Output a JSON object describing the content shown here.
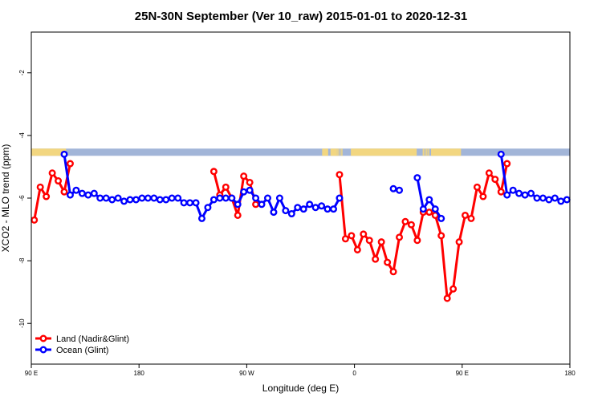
{
  "chart_data": {
    "type": "line",
    "title": "25N-30N September (Ver 10_raw)   2015-01-01 to 2020-12-31",
    "xlabel": "Longitude (deg E)",
    "ylabel": "XCO2 - MLO trend (ppm)",
    "xlim": [
      90,
      540
    ],
    "ylim": [
      -11.3,
      -0.7
    ],
    "x_ticks": [
      {
        "value": 90,
        "label": "90 E"
      },
      {
        "value": 180,
        "label": "180"
      },
      {
        "value": 270,
        "label": "90 W"
      },
      {
        "value": 360,
        "label": "0"
      },
      {
        "value": 450,
        "label": "90 E"
      },
      {
        "value": 540,
        "label": "180"
      }
    ],
    "y_ticks": [
      {
        "value": -2,
        "label": "-2"
      },
      {
        "value": -4,
        "label": "-4"
      },
      {
        "value": -6,
        "label": "-6"
      },
      {
        "value": -8,
        "label": "-8"
      },
      {
        "value": -10,
        "label": "-10"
      }
    ],
    "surface_strip": {
      "y_range": [
        -4.65,
        -4.42
      ],
      "ocean_color": "#a2b5d8",
      "land_color": "#f2d680",
      "land_intervals": [
        [
          90,
          119
        ],
        [
          333,
          338
        ],
        [
          340,
          345
        ],
        [
          345,
          346
        ],
        [
          346,
          346.8
        ],
        [
          347.6,
          348.4
        ],
        [
          349,
          350
        ],
        [
          357,
          412
        ],
        [
          417,
          418
        ],
        [
          418.5,
          419.5
        ],
        [
          420,
          421
        ],
        [
          421.5,
          422.5
        ],
        [
          424,
          449
        ]
      ]
    },
    "series": [
      {
        "name": "Land (Nadir&Glint)",
        "color": "#ff0000",
        "segments": [
          [
            [
              92.5,
              -6.7
            ],
            [
              97.5,
              -5.65
            ],
            [
              102.5,
              -5.95
            ],
            [
              107.5,
              -5.2
            ],
            [
              112.5,
              -5.45
            ],
            [
              117.5,
              -5.8
            ],
            [
              122.5,
              -4.9
            ]
          ],
          [
            [
              242.5,
              -5.15
            ],
            [
              247.5,
              -5.9
            ],
            [
              252.5,
              -5.65
            ],
            [
              257.5,
              -6.0
            ],
            [
              262.5,
              -6.55
            ],
            [
              267.5,
              -5.3
            ],
            [
              272.5,
              -5.5
            ],
            [
              277.5,
              -6.2
            ]
          ],
          [
            [
              347.5,
              -5.25
            ],
            [
              352.5,
              -7.3
            ],
            [
              357.5,
              -7.2
            ],
            [
              362.5,
              -7.65
            ],
            [
              367.5,
              -7.15
            ],
            [
              372.5,
              -7.35
            ],
            [
              377.5,
              -7.95
            ],
            [
              382.5,
              -7.4
            ],
            [
              387.5,
              -8.05
            ],
            [
              392.5,
              -8.35
            ],
            [
              397.5,
              -7.25
            ],
            [
              402.5,
              -6.75
            ],
            [
              407.5,
              -6.85
            ],
            [
              412.5,
              -7.35
            ],
            [
              417.5,
              -6.45
            ],
            [
              422.5,
              -6.45
            ],
            [
              427.5,
              -6.55
            ],
            [
              432.5,
              -7.2
            ],
            [
              437.5,
              -9.2
            ],
            [
              442.5,
              -8.9
            ],
            [
              447.5,
              -7.4
            ],
            [
              452.5,
              -6.55
            ],
            [
              457.5,
              -6.65
            ],
            [
              462.5,
              -5.65
            ],
            [
              467.5,
              -5.95
            ],
            [
              472.5,
              -5.2
            ],
            [
              477.5,
              -5.4
            ],
            [
              482.5,
              -5.8
            ],
            [
              487.5,
              -4.9
            ]
          ]
        ]
      },
      {
        "name": "Ocean (Glint)",
        "color": "#0000ff",
        "segments": [
          [
            [
              117.5,
              -4.6
            ],
            [
              122.5,
              -5.9
            ],
            [
              127.5,
              -5.75
            ],
            [
              132.5,
              -5.85
            ],
            [
              137.5,
              -5.9
            ],
            [
              142.5,
              -5.85
            ],
            [
              147.5,
              -6.0
            ],
            [
              152.5,
              -6.0
            ],
            [
              157.5,
              -6.05
            ],
            [
              162.5,
              -6.0
            ],
            [
              167.5,
              -6.1
            ],
            [
              172.5,
              -6.05
            ],
            [
              177.5,
              -6.05
            ],
            [
              182.5,
              -6.0
            ],
            [
              187.5,
              -6.0
            ],
            [
              192.5,
              -6.0
            ],
            [
              197.5,
              -6.05
            ],
            [
              202.5,
              -6.05
            ],
            [
              207.5,
              -6.0
            ],
            [
              212.5,
              -6.0
            ],
            [
              217.5,
              -6.15
            ],
            [
              222.5,
              -6.15
            ],
            [
              227.5,
              -6.15
            ],
            [
              232.5,
              -6.65
            ],
            [
              237.5,
              -6.3
            ],
            [
              242.5,
              -6.05
            ],
            [
              247.5,
              -6.0
            ],
            [
              252.5,
              -6.0
            ],
            [
              257.5,
              -6.0
            ],
            [
              262.5,
              -6.2
            ],
            [
              267.5,
              -5.8
            ],
            [
              272.5,
              -5.75
            ],
            [
              277.5,
              -6.0
            ],
            [
              282.5,
              -6.2
            ],
            [
              287.5,
              -6.0
            ],
            [
              292.5,
              -6.45
            ],
            [
              297.5,
              -6.0
            ],
            [
              302.5,
              -6.4
            ],
            [
              307.5,
              -6.5
            ],
            [
              312.5,
              -6.3
            ],
            [
              317.5,
              -6.35
            ],
            [
              322.5,
              -6.2
            ],
            [
              327.5,
              -6.3
            ],
            [
              332.5,
              -6.25
            ],
            [
              337.5,
              -6.35
            ],
            [
              342.5,
              -6.35
            ],
            [
              347.5,
              -6.0
            ]
          ],
          [
            [
              392.5,
              -5.7
            ],
            [
              397.5,
              -5.75
            ]
          ],
          [
            [
              412.5,
              -5.35
            ],
            [
              417.5,
              -6.35
            ],
            [
              422.5,
              -6.05
            ],
            [
              427.5,
              -6.35
            ],
            [
              432.5,
              -6.65
            ]
          ],
          [
            [
              482.5,
              -4.6
            ],
            [
              487.5,
              -5.9
            ],
            [
              492.5,
              -5.75
            ],
            [
              497.5,
              -5.85
            ],
            [
              502.5,
              -5.9
            ],
            [
              507.5,
              -5.85
            ],
            [
              512.5,
              -6.0
            ],
            [
              517.5,
              -6.0
            ],
            [
              522.5,
              -6.05
            ],
            [
              527.5,
              -6.0
            ],
            [
              532.5,
              -6.1
            ],
            [
              537.5,
              -6.05
            ]
          ]
        ]
      }
    ],
    "legend": {
      "placement": "bottom-left",
      "entries": [
        "Land (Nadir&Glint)",
        "Ocean (Glint)"
      ]
    },
    "grid": false
  }
}
